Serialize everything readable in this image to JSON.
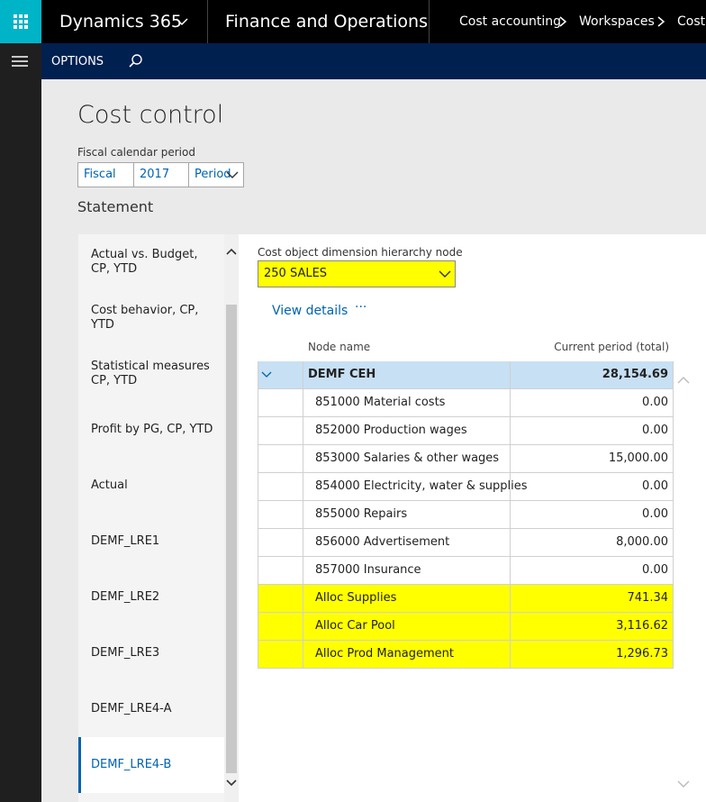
{
  "topbar": {
    "app": "Dynamics 365",
    "module": "Finance and Operations",
    "breadcrumb": [
      "Cost accounting",
      "Workspaces",
      "Cost"
    ]
  },
  "navbar": {
    "options": "OPTIONS"
  },
  "page": {
    "title": "Cost control",
    "fiscal_label": "Fiscal calendar period",
    "fiscal_fields": [
      "Fiscal",
      "2017",
      "Period"
    ],
    "section": "Statement"
  },
  "statements": [
    "Actual vs. Budget, CP, YTD",
    "Cost behavior, CP, YTD",
    "Statistical measures CP, YTD",
    "Profit by PG, CP, YTD",
    "Actual",
    "DEMF_LRE1",
    "DEMF_LRE2",
    "DEMF_LRE3",
    "DEMF_LRE4-A",
    "DEMF_LRE4-B"
  ],
  "node": {
    "label": "Cost object dimension hierarchy node",
    "value": "250 SALES"
  },
  "actions": [
    "View details",
    "···"
  ],
  "table": {
    "headers": [
      "Node name",
      "Current period (total)"
    ],
    "rows": [
      {
        "name": "DEMF CEH",
        "value": "28,154.69",
        "color": "#c7e0f4"
      },
      {
        "name": "851000 Material costs",
        "value": "0.00"
      },
      {
        "name": "852000 Production wages",
        "value": "0.00"
      },
      {
        "name": "853000 Salaries & other wages",
        "value": "15,000.00"
      },
      {
        "name": "854000 Electricity, water & supplies",
        "value": "0.00"
      },
      {
        "name": "855000 Repairs",
        "value": "0.00"
      },
      {
        "name": "856000 Advertisement",
        "value": "8,000.00"
      },
      {
        "name": "857000 Insurance",
        "value": "0.00"
      },
      {
        "name": "Alloc Supplies",
        "value": "741.34",
        "color": "#ffff00"
      },
      {
        "name": "Alloc Car Pool",
        "value": "3,116.62",
        "color": "#ffff00"
      },
      {
        "name": "Alloc Prod Management",
        "value": "1,296.73",
        "color": "#ffff00"
      }
    ]
  }
}
